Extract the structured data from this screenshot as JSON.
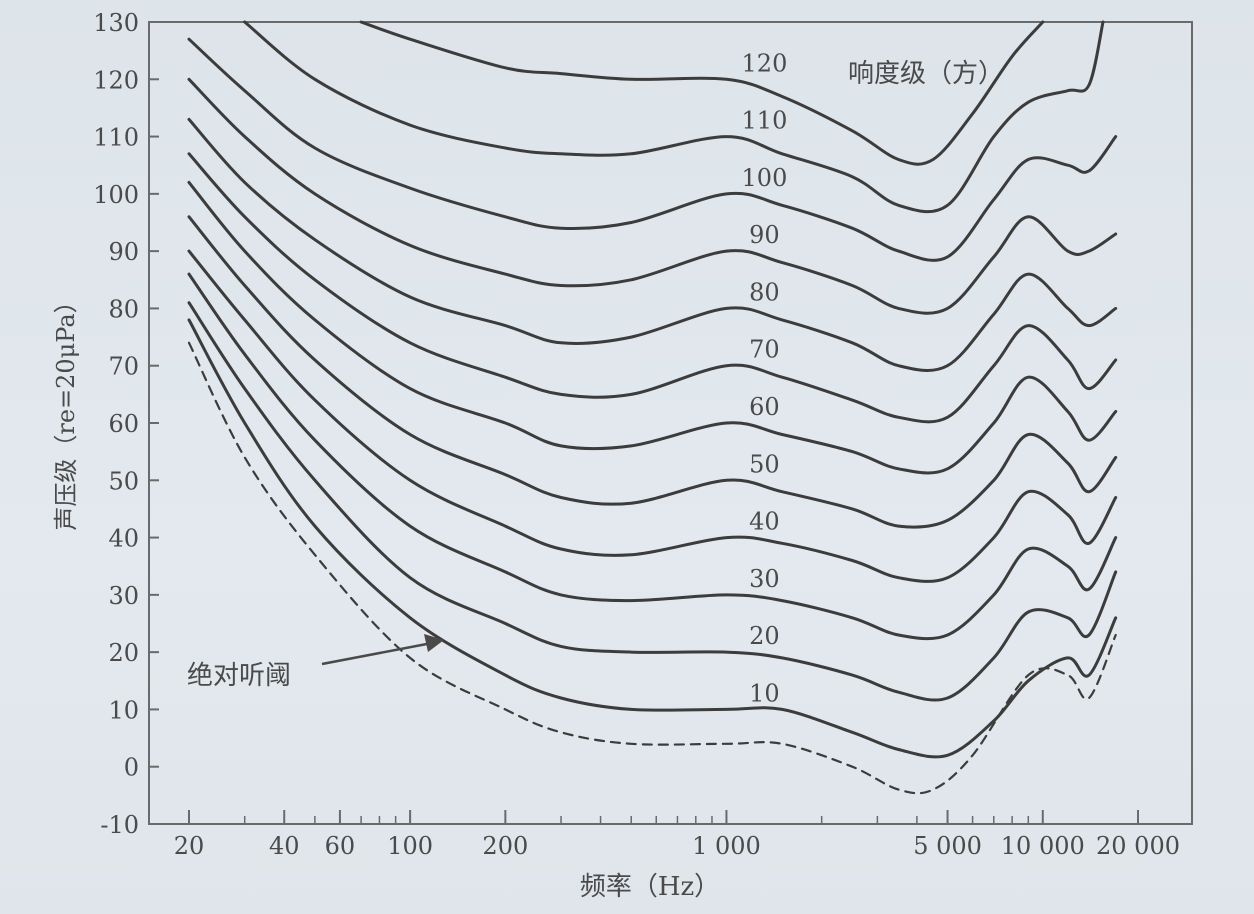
{
  "chart_data": {
    "type": "line",
    "title": "",
    "xlabel": "频率（Hz）",
    "ylabel": "声压级（re=20μPa）",
    "xscale": "log",
    "xlim": [
      20,
      20000
    ],
    "ylim": [
      -10,
      130
    ],
    "grid": false,
    "x_ticks": [
      {
        "value": 20,
        "label": "20"
      },
      {
        "value": 40,
        "label": "40"
      },
      {
        "value": 60,
        "label": "60"
      },
      {
        "value": 100,
        "label": "100"
      },
      {
        "value": 200,
        "label": "200"
      },
      {
        "value": 1000,
        "label": "1 000"
      },
      {
        "value": 5000,
        "label": "5 000"
      },
      {
        "value": 10000,
        "label": "10 000"
      },
      {
        "value": 20000,
        "label": "20 000"
      }
    ],
    "y_ticks": [
      -10,
      0,
      10,
      20,
      30,
      40,
      50,
      60,
      70,
      80,
      90,
      100,
      110,
      120,
      130
    ],
    "series_label_title": "响度级（方）",
    "threshold_annotation": "绝对听阈",
    "series": [
      {
        "label": "绝对听阈",
        "style": "dashed",
        "points": [
          [
            20,
            74
          ],
          [
            30,
            54
          ],
          [
            50,
            37
          ],
          [
            100,
            19
          ],
          [
            200,
            10
          ],
          [
            300,
            6
          ],
          [
            500,
            4
          ],
          [
            1000,
            4
          ],
          [
            1500,
            4
          ],
          [
            2500,
            0
          ],
          [
            3500,
            -4
          ],
          [
            4500,
            -4
          ],
          [
            6000,
            2
          ],
          [
            9000,
            16
          ],
          [
            12000,
            16
          ],
          [
            14000,
            12
          ],
          [
            17000,
            23
          ]
        ]
      },
      {
        "label": "10",
        "style": "solid",
        "points": [
          [
            20,
            78
          ],
          [
            30,
            60
          ],
          [
            50,
            42
          ],
          [
            100,
            26
          ],
          [
            200,
            16
          ],
          [
            300,
            12
          ],
          [
            500,
            10
          ],
          [
            1000,
            10
          ],
          [
            1500,
            10
          ],
          [
            2500,
            6
          ],
          [
            3500,
            3
          ],
          [
            5000,
            2
          ],
          [
            7000,
            8
          ],
          [
            9000,
            15
          ],
          [
            12000,
            19
          ],
          [
            14000,
            16
          ],
          [
            17000,
            26
          ]
        ]
      },
      {
        "label": "20",
        "style": "solid",
        "points": [
          [
            20,
            81
          ],
          [
            30,
            66
          ],
          [
            50,
            50
          ],
          [
            100,
            33
          ],
          [
            200,
            25
          ],
          [
            300,
            21
          ],
          [
            500,
            20
          ],
          [
            1000,
            20
          ],
          [
            1500,
            19
          ],
          [
            2500,
            16
          ],
          [
            3500,
            13
          ],
          [
            5000,
            12
          ],
          [
            7000,
            19
          ],
          [
            9000,
            27
          ],
          [
            12000,
            26
          ],
          [
            14000,
            23
          ],
          [
            17000,
            34
          ]
        ]
      },
      {
        "label": "30",
        "style": "solid",
        "points": [
          [
            20,
            86
          ],
          [
            30,
            72
          ],
          [
            50,
            57
          ],
          [
            100,
            42
          ],
          [
            200,
            34
          ],
          [
            300,
            30
          ],
          [
            500,
            29
          ],
          [
            1000,
            30
          ],
          [
            1500,
            29
          ],
          [
            2500,
            26
          ],
          [
            3500,
            23
          ],
          [
            5000,
            23
          ],
          [
            7000,
            30
          ],
          [
            9000,
            38
          ],
          [
            12000,
            35
          ],
          [
            14000,
            31
          ],
          [
            17000,
            40
          ]
        ]
      },
      {
        "label": "40",
        "style": "solid",
        "points": [
          [
            20,
            90
          ],
          [
            30,
            78
          ],
          [
            50,
            64
          ],
          [
            100,
            50
          ],
          [
            200,
            42
          ],
          [
            300,
            38
          ],
          [
            500,
            37
          ],
          [
            1000,
            40
          ],
          [
            1500,
            39
          ],
          [
            2500,
            36
          ],
          [
            3500,
            33
          ],
          [
            5000,
            33
          ],
          [
            7000,
            40
          ],
          [
            9000,
            48
          ],
          [
            12000,
            44
          ],
          [
            14000,
            39
          ],
          [
            17000,
            47
          ]
        ]
      },
      {
        "label": "50",
        "style": "solid",
        "points": [
          [
            20,
            96
          ],
          [
            30,
            84
          ],
          [
            50,
            71
          ],
          [
            100,
            58
          ],
          [
            200,
            51
          ],
          [
            300,
            47
          ],
          [
            500,
            46
          ],
          [
            1000,
            50
          ],
          [
            1500,
            48
          ],
          [
            2500,
            45
          ],
          [
            3500,
            42
          ],
          [
            5000,
            43
          ],
          [
            7000,
            50
          ],
          [
            9000,
            58
          ],
          [
            12000,
            53
          ],
          [
            14000,
            48
          ],
          [
            17000,
            54
          ]
        ]
      },
      {
        "label": "60",
        "style": "solid",
        "points": [
          [
            20,
            102
          ],
          [
            30,
            90
          ],
          [
            50,
            78
          ],
          [
            100,
            66
          ],
          [
            200,
            60
          ],
          [
            300,
            56
          ],
          [
            500,
            56
          ],
          [
            1000,
            60
          ],
          [
            1500,
            58
          ],
          [
            2500,
            55
          ],
          [
            3500,
            52
          ],
          [
            5000,
            52
          ],
          [
            7000,
            60
          ],
          [
            9000,
            68
          ],
          [
            12000,
            62
          ],
          [
            14000,
            57
          ],
          [
            17000,
            62
          ]
        ]
      },
      {
        "label": "70",
        "style": "solid",
        "points": [
          [
            20,
            107
          ],
          [
            30,
            96
          ],
          [
            50,
            85
          ],
          [
            100,
            74
          ],
          [
            200,
            68
          ],
          [
            300,
            65
          ],
          [
            500,
            65
          ],
          [
            1000,
            70
          ],
          [
            1500,
            68
          ],
          [
            2500,
            64
          ],
          [
            3500,
            61
          ],
          [
            5000,
            61
          ],
          [
            7000,
            70
          ],
          [
            9000,
            77
          ],
          [
            12000,
            71
          ],
          [
            14000,
            66
          ],
          [
            17000,
            71
          ]
        ]
      },
      {
        "label": "80",
        "style": "solid",
        "points": [
          [
            20,
            113
          ],
          [
            30,
            102
          ],
          [
            50,
            92
          ],
          [
            100,
            82
          ],
          [
            200,
            77
          ],
          [
            300,
            74
          ],
          [
            500,
            75
          ],
          [
            1000,
            80
          ],
          [
            1500,
            78
          ],
          [
            2500,
            74
          ],
          [
            3500,
            70
          ],
          [
            5000,
            70
          ],
          [
            7000,
            79
          ],
          [
            9000,
            86
          ],
          [
            12000,
            80
          ],
          [
            14000,
            77
          ],
          [
            17000,
            80
          ]
        ]
      },
      {
        "label": "90",
        "style": "solid",
        "points": [
          [
            20,
            120
          ],
          [
            30,
            110
          ],
          [
            50,
            100
          ],
          [
            100,
            91
          ],
          [
            200,
            86
          ],
          [
            300,
            84
          ],
          [
            500,
            85
          ],
          [
            1000,
            90
          ],
          [
            1500,
            88
          ],
          [
            2500,
            84
          ],
          [
            3500,
            80
          ],
          [
            5000,
            80
          ],
          [
            7000,
            89
          ],
          [
            9000,
            96
          ],
          [
            12000,
            90
          ],
          [
            14000,
            90
          ],
          [
            17000,
            93
          ]
        ]
      },
      {
        "label": "100",
        "style": "solid",
        "points": [
          [
            20,
            127
          ],
          [
            30,
            118
          ],
          [
            50,
            108
          ],
          [
            100,
            101
          ],
          [
            200,
            96
          ],
          [
            300,
            94
          ],
          [
            500,
            95
          ],
          [
            1000,
            100
          ],
          [
            1500,
            98
          ],
          [
            2500,
            94
          ],
          [
            3500,
            90
          ],
          [
            5000,
            89
          ],
          [
            7000,
            99
          ],
          [
            9000,
            106
          ],
          [
            12000,
            105
          ],
          [
            14000,
            104
          ],
          [
            17000,
            110
          ]
        ]
      },
      {
        "label": "110",
        "style": "solid",
        "points": [
          [
            30,
            130
          ],
          [
            50,
            120
          ],
          [
            100,
            112
          ],
          [
            200,
            108
          ],
          [
            300,
            107
          ],
          [
            500,
            107
          ],
          [
            1000,
            110
          ],
          [
            1500,
            107
          ],
          [
            2500,
            103
          ],
          [
            3500,
            98
          ],
          [
            5000,
            98
          ],
          [
            7000,
            110
          ],
          [
            9000,
            116
          ],
          [
            12000,
            118
          ],
          [
            14000,
            119
          ],
          [
            15500,
            130
          ]
        ]
      },
      {
        "label": "120",
        "style": "solid",
        "points": [
          [
            70,
            130
          ],
          [
            100,
            127
          ],
          [
            200,
            122
          ],
          [
            300,
            121
          ],
          [
            500,
            120
          ],
          [
            1000,
            120
          ],
          [
            1500,
            117
          ],
          [
            2500,
            111
          ],
          [
            3500,
            106
          ],
          [
            4500,
            106
          ],
          [
            6000,
            114
          ],
          [
            8000,
            124
          ],
          [
            10000,
            130
          ]
        ]
      }
    ]
  }
}
